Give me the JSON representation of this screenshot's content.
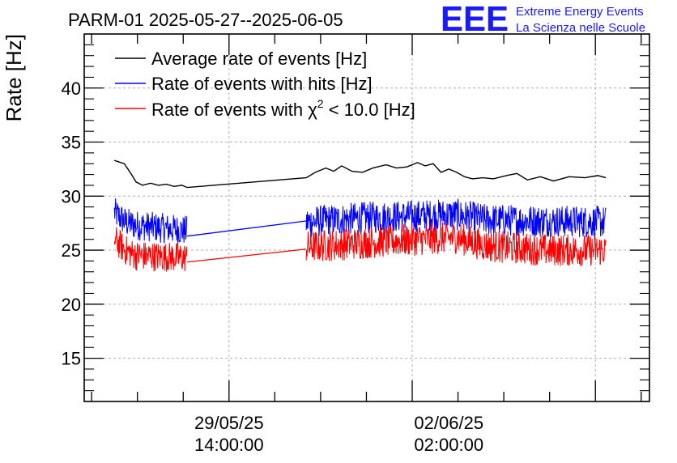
{
  "logo": {
    "mark": "EEE",
    "line1": "Extreme Energy Events",
    "line2": "La Scienza nelle Scuole",
    "color": "#1a1aff"
  },
  "chart_data": {
    "type": "line",
    "title": "PARM-01 2025-05-27--2025-06-05",
    "ylabel": "Rate [Hz]",
    "xlabel": "",
    "xlim": [
      "2025-05-27T06:40:00",
      "2025-06-05T06:40:00"
    ],
    "ylim": [
      11,
      45
    ],
    "grid": true,
    "legend_position": "top-left",
    "x_ticks": [
      {
        "t": "2025-05-29T14:00:00",
        "date": "29/05/25",
        "time": "14:00:00"
      },
      {
        "t": "2025-06-02T02:00:00",
        "date": "02/06/25",
        "time": "02:00:00"
      }
    ],
    "y_ticks": [
      15,
      20,
      25,
      30,
      35,
      40
    ],
    "legend": [
      {
        "label": "Average rate of events [Hz]",
        "color": "#000000"
      },
      {
        "label": "Rate of events with hits [Hz]",
        "color": "#0000ff"
      },
      {
        "label_prefix": "Rate of events with ",
        "label_chi": "χ",
        "label_sup": "2",
        "label_suffix": " < 10.0 [Hz]",
        "color": "#ff0000"
      }
    ],
    "series": [
      {
        "key": "avg",
        "color": "#000000",
        "points": [
          [
            "2025-05-27T18:10:00",
            33.3
          ],
          [
            "2025-05-27T22:00:00",
            33.0
          ],
          [
            "2025-05-28T00:30:00",
            32.1
          ],
          [
            "2025-05-28T02:30:00",
            31.3
          ],
          [
            "2025-05-28T05:00:00",
            31.0
          ],
          [
            "2025-05-28T08:00:00",
            31.2
          ],
          [
            "2025-05-28T11:00:00",
            31.0
          ],
          [
            "2025-05-28T14:00:00",
            31.1
          ],
          [
            "2025-05-28T17:00:00",
            30.9
          ],
          [
            "2025-05-28T20:00:00",
            31.0
          ],
          [
            "2025-05-28T22:00:00",
            30.8
          ],
          [
            "2025-05-30T19:30:00",
            31.7
          ],
          [
            "2025-05-30T23:00:00",
            32.2
          ],
          [
            "2025-05-31T03:00:00",
            32.6
          ],
          [
            "2025-05-31T06:00:00",
            32.3
          ],
          [
            "2025-05-31T09:00:00",
            32.8
          ],
          [
            "2025-05-31T13:00:00",
            32.3
          ],
          [
            "2025-05-31T17:00:00",
            32.2
          ],
          [
            "2025-05-31T21:00:00",
            32.6
          ],
          [
            "2025-06-01T02:00:00",
            32.9
          ],
          [
            "2025-06-01T06:00:00",
            32.6
          ],
          [
            "2025-06-01T10:00:00",
            32.7
          ],
          [
            "2025-06-01T14:00:00",
            33.1
          ],
          [
            "2025-06-01T17:00:00",
            32.8
          ],
          [
            "2025-06-01T20:00:00",
            33.0
          ],
          [
            "2025-06-01T23:00:00",
            32.2
          ],
          [
            "2025-06-02T02:00:00",
            32.5
          ],
          [
            "2025-06-02T05:00:00",
            32.2
          ],
          [
            "2025-06-02T08:00:00",
            31.8
          ],
          [
            "2025-06-02T11:00:00",
            31.6
          ],
          [
            "2025-06-02T15:00:00",
            31.7
          ],
          [
            "2025-06-02T19:00:00",
            31.6
          ],
          [
            "2025-06-03T00:00:00",
            31.9
          ],
          [
            "2025-06-03T04:00:00",
            32.1
          ],
          [
            "2025-06-03T08:00:00",
            31.5
          ],
          [
            "2025-06-03T13:00:00",
            31.8
          ],
          [
            "2025-06-03T18:00:00",
            31.4
          ],
          [
            "2025-06-04T00:00:00",
            31.8
          ],
          [
            "2025-06-04T06:00:00",
            31.7
          ],
          [
            "2025-06-04T11:00:00",
            31.9
          ],
          [
            "2025-06-04T14:00:00",
            31.7
          ]
        ]
      },
      {
        "key": "hits",
        "color": "#0000ff",
        "segments": [
          {
            "start": "2025-05-27T18:10:00",
            "end": "2025-05-28T22:00:00",
            "mean": [
              [
                0,
                28.5
              ],
              [
                0.15,
                27.6
              ],
              [
                0.3,
                27.3
              ],
              [
                1,
                26.8
              ]
            ],
            "spread": 1.4
          },
          {
            "start": "2025-05-30T19:30:00",
            "end": "2025-06-04T14:00:00",
            "mean": [
              [
                0,
                27.6
              ],
              [
                0.2,
                28.0
              ],
              [
                0.5,
                28.3
              ],
              [
                0.6,
                27.8
              ],
              [
                0.8,
                27.7
              ],
              [
                1,
                27.6
              ]
            ],
            "spread": 1.5
          }
        ],
        "bridge": [
          [
            "2025-05-28T22:00:00",
            26.3
          ],
          [
            "2025-05-30T19:30:00",
            27.7
          ]
        ],
        "envelope_max": 30.9,
        "envelope_min": 25.6
      },
      {
        "key": "chi2",
        "color": "#ff0000",
        "segments": [
          {
            "start": "2025-05-27T18:10:00",
            "end": "2025-05-28T22:00:00",
            "mean": [
              [
                0,
                26.0
              ],
              [
                0.15,
                25.0
              ],
              [
                0.3,
                24.5
              ],
              [
                1,
                24.3
              ]
            ],
            "spread": 1.4
          },
          {
            "start": "2025-05-30T19:30:00",
            "end": "2025-06-04T14:00:00",
            "mean": [
              [
                0,
                25.3
              ],
              [
                0.2,
                25.7
              ],
              [
                0.5,
                26.2
              ],
              [
                0.6,
                25.4
              ],
              [
                0.8,
                25.0
              ],
              [
                1,
                25.0
              ]
            ],
            "spread": 1.5
          }
        ],
        "bridge": [
          [
            "2025-05-28T22:00:00",
            23.9
          ],
          [
            "2025-05-30T19:30:00",
            25.1
          ]
        ],
        "envelope_max": 28.0,
        "envelope_min": 22.3
      }
    ]
  }
}
